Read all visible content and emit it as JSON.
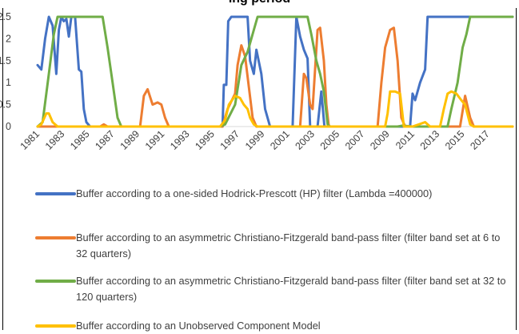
{
  "chart_title": "ing period",
  "chart_data": {
    "type": "line",
    "title": "ing period",
    "xlabel": "",
    "ylabel": "",
    "xlim": [
      1981,
      2019
    ],
    "ylim": [
      0,
      2.5
    ],
    "y_ticks": [
      0,
      0.5,
      1,
      1.5,
      2,
      2.5
    ],
    "y_tick_labels": [
      "0",
      "0.5",
      "1",
      "1.5",
      "2",
      "2.5"
    ],
    "x_ticks": [
      1981,
      1983,
      1985,
      1987,
      1989,
      1991,
      1993,
      1995,
      1997,
      1999,
      2001,
      2003,
      2005,
      2007,
      2009,
      2011,
      2013,
      2015,
      2017
    ],
    "x_tick_labels": [
      "1981",
      "1983",
      "1985",
      "1987",
      "1989",
      "1991",
      "1993",
      "1995",
      "1997",
      "1999",
      "2001",
      "2003",
      "2005",
      "2007",
      "2009",
      "2011",
      "2013",
      "2015",
      "2017"
    ],
    "grid": false,
    "legend_position": "bottom",
    "series": [
      {
        "name": "Buffer according to a one-sided Hodrick-Prescott (HP) filter (Lambda =400000)",
        "color": "#4472C4",
        "points": [
          [
            1981.0,
            1.4
          ],
          [
            1981.3,
            1.3
          ],
          [
            1981.6,
            2.0
          ],
          [
            1981.9,
            2.5
          ],
          [
            1982.2,
            2.3
          ],
          [
            1982.5,
            1.2
          ],
          [
            1982.7,
            2.2
          ],
          [
            1982.9,
            2.5
          ],
          [
            1983.1,
            2.4
          ],
          [
            1983.3,
            2.45
          ],
          [
            1983.5,
            2.05
          ],
          [
            1983.7,
            2.5
          ],
          [
            1984.0,
            2.5
          ],
          [
            1984.3,
            1.3
          ],
          [
            1984.5,
            1.25
          ],
          [
            1984.7,
            0.4
          ],
          [
            1984.9,
            0.1
          ],
          [
            1985.2,
            0.0
          ],
          [
            1995.8,
            0.0
          ],
          [
            1995.9,
            0.95
          ],
          [
            1996.1,
            0.95
          ],
          [
            1996.25,
            2.4
          ],
          [
            1996.5,
            2.5
          ],
          [
            1997.5,
            2.5
          ],
          [
            1997.8,
            2.5
          ],
          [
            1998.0,
            1.5
          ],
          [
            1998.3,
            1.2
          ],
          [
            1998.5,
            1.75
          ],
          [
            1998.9,
            1.2
          ],
          [
            1999.2,
            0.4
          ],
          [
            1999.6,
            0.0
          ],
          [
            2001.4,
            0.0
          ],
          [
            2001.7,
            2.5
          ],
          [
            2002.0,
            2.05
          ],
          [
            2002.3,
            1.75
          ],
          [
            2002.6,
            1.55
          ],
          [
            2002.8,
            0.0
          ],
          [
            2003.4,
            0.0
          ],
          [
            2003.7,
            0.8
          ],
          [
            2003.95,
            0.0
          ],
          [
            2010.8,
            0.0
          ],
          [
            2011.0,
            0.75
          ],
          [
            2011.2,
            0.6
          ],
          [
            2011.6,
            1.0
          ],
          [
            2012.0,
            1.3
          ],
          [
            2012.2,
            2.5
          ],
          [
            2019.0,
            2.5
          ]
        ]
      },
      {
        "name": "Buffer according to an asymmetric Christiano-Fitzgerald band-pass filter (filter band set at 6 to 32 quarters)",
        "color": "#ED7D31",
        "points": [
          [
            1981.0,
            0.0
          ],
          [
            1986.0,
            0.0
          ],
          [
            1986.3,
            0.05
          ],
          [
            1986.6,
            0.0
          ],
          [
            1989.2,
            0.0
          ],
          [
            1989.5,
            0.7
          ],
          [
            1989.8,
            0.85
          ],
          [
            1990.2,
            0.5
          ],
          [
            1990.6,
            0.55
          ],
          [
            1990.9,
            0.5
          ],
          [
            1991.2,
            0.2
          ],
          [
            1991.5,
            0.0
          ],
          [
            1995.8,
            0.0
          ],
          [
            1996.2,
            0.4
          ],
          [
            1996.8,
            0.75
          ],
          [
            1997.0,
            1.4
          ],
          [
            1997.3,
            1.85
          ],
          [
            1997.6,
            1.6
          ],
          [
            1997.9,
            0.9
          ],
          [
            1998.2,
            0.2
          ],
          [
            1998.5,
            0.0
          ],
          [
            2002.0,
            0.0
          ],
          [
            2002.3,
            1.2
          ],
          [
            2002.5,
            1.1
          ],
          [
            2002.8,
            0.5
          ],
          [
            2003.0,
            0.4
          ],
          [
            2003.4,
            2.2
          ],
          [
            2003.6,
            2.25
          ],
          [
            2003.9,
            1.5
          ],
          [
            2004.1,
            0.5
          ],
          [
            2004.3,
            0.0
          ],
          [
            2008.2,
            0.0
          ],
          [
            2008.5,
            1.0
          ],
          [
            2008.8,
            1.8
          ],
          [
            2009.2,
            2.2
          ],
          [
            2009.5,
            2.25
          ],
          [
            2009.8,
            1.5
          ],
          [
            2010.1,
            0.2
          ],
          [
            2010.4,
            0.0
          ],
          [
            2014.8,
            0.0
          ],
          [
            2015.2,
            0.7
          ],
          [
            2015.6,
            0.2
          ],
          [
            2015.9,
            0.0
          ],
          [
            2019.0,
            0.0
          ]
        ]
      },
      {
        "name": "Buffer according to an asymmetric Christiano-Fitzgerald band-pass filter (filter band set at 32 to 120 quarters)",
        "color": "#70AD47",
        "points": [
          [
            1981.0,
            0.0
          ],
          [
            1981.4,
            0.1
          ],
          [
            1981.9,
            1.2
          ],
          [
            1982.3,
            2.1
          ],
          [
            1982.6,
            2.5
          ],
          [
            1986.2,
            2.5
          ],
          [
            1986.6,
            1.8
          ],
          [
            1987.0,
            1.0
          ],
          [
            1987.4,
            0.2
          ],
          [
            1987.7,
            0.0
          ],
          [
            1995.6,
            0.0
          ],
          [
            1996.0,
            0.05
          ],
          [
            1996.8,
            0.5
          ],
          [
            1997.3,
            1.4
          ],
          [
            1997.8,
            1.7
          ],
          [
            1998.3,
            2.2
          ],
          [
            1998.6,
            2.5
          ],
          [
            2002.0,
            2.5
          ],
          [
            2002.6,
            2.5
          ],
          [
            2002.9,
            2.1
          ],
          [
            2003.3,
            1.5
          ],
          [
            2003.6,
            1.2
          ],
          [
            2003.9,
            0.8
          ],
          [
            2004.2,
            0.05
          ],
          [
            2004.4,
            0.0
          ],
          [
            2009.8,
            0.0
          ],
          [
            2010.2,
            0.02
          ],
          [
            2011.0,
            0.0
          ],
          [
            2013.8,
            0.0
          ],
          [
            2014.1,
            0.4
          ],
          [
            2014.6,
            1.0
          ],
          [
            2015.0,
            1.8
          ],
          [
            2015.3,
            2.1
          ],
          [
            2015.6,
            2.5
          ],
          [
            2019.0,
            2.5
          ]
        ]
      },
      {
        "name": "Buffer according to an Unobserved Component Model",
        "color": "#FFC000",
        "points": [
          [
            1981.0,
            0.0
          ],
          [
            1981.3,
            0.05
          ],
          [
            1981.7,
            0.3
          ],
          [
            1981.9,
            0.3
          ],
          [
            1982.2,
            0.1
          ],
          [
            1982.6,
            0.0
          ],
          [
            1995.6,
            0.0
          ],
          [
            1996.0,
            0.15
          ],
          [
            1996.3,
            0.5
          ],
          [
            1996.8,
            0.7
          ],
          [
            1997.2,
            0.65
          ],
          [
            1997.5,
            0.5
          ],
          [
            1997.8,
            0.4
          ],
          [
            1998.0,
            0.2
          ],
          [
            1998.3,
            0.05
          ],
          [
            1998.6,
            0.0
          ],
          [
            2008.8,
            0.0
          ],
          [
            2009.0,
            0.3
          ],
          [
            2009.2,
            0.8
          ],
          [
            2009.6,
            0.8
          ],
          [
            2010.0,
            0.75
          ],
          [
            2010.1,
            0.5
          ],
          [
            2010.3,
            0.0
          ],
          [
            2011.0,
            0.0
          ],
          [
            2011.5,
            0.05
          ],
          [
            2012.0,
            0.1
          ],
          [
            2012.4,
            0.0
          ],
          [
            2013.2,
            0.0
          ],
          [
            2013.5,
            0.4
          ],
          [
            2013.8,
            0.75
          ],
          [
            2014.1,
            0.8
          ],
          [
            2014.5,
            0.75
          ],
          [
            2014.9,
            0.6
          ],
          [
            2015.2,
            0.5
          ],
          [
            2015.6,
            0.05
          ],
          [
            2015.9,
            0.0
          ],
          [
            2019.0,
            0.0
          ]
        ]
      }
    ]
  }
}
